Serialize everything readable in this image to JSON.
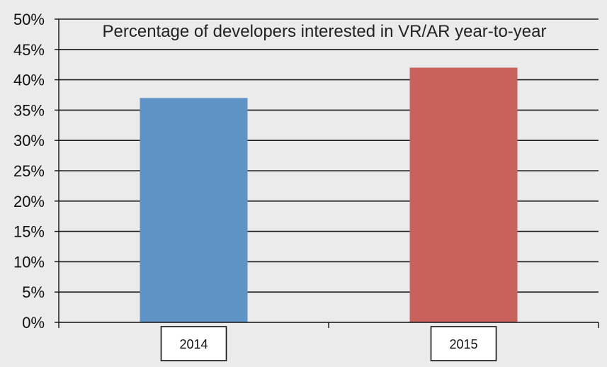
{
  "chart_data": {
    "type": "bar",
    "title": "Percentage of developers interested in VR/AR year-to-year",
    "xlabel": "",
    "ylabel": "",
    "categories": [
      "2014",
      "2015"
    ],
    "values": [
      37,
      42
    ],
    "bar_colors": [
      "#5f93c6",
      "#c9615c"
    ],
    "ylim": [
      0,
      50
    ],
    "yticks": [
      0,
      5,
      10,
      15,
      20,
      25,
      30,
      35,
      40,
      45,
      50
    ],
    "ytick_labels": [
      "0%",
      "5%",
      "10%",
      "15%",
      "20%",
      "25%",
      "30%",
      "35%",
      "40%",
      "45%",
      "50%"
    ],
    "grid": true,
    "legend": "none"
  }
}
